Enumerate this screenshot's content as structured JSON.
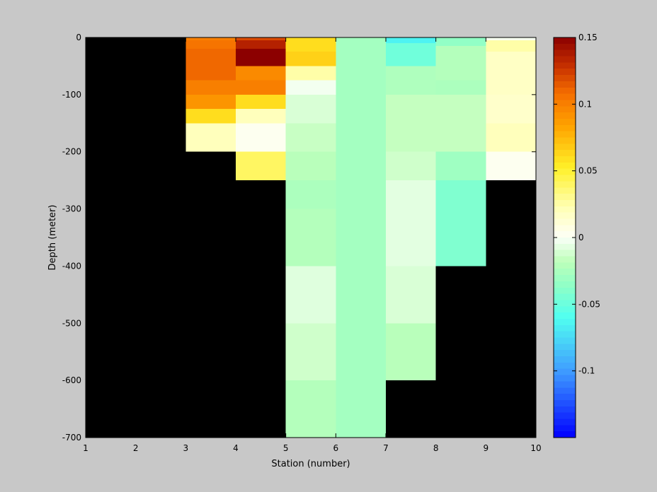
{
  "chart_data": {
    "type": "heatmap",
    "xlabel": "Station (number)",
    "ylabel": "Depth (meter)",
    "xlim": [
      1,
      10
    ],
    "ylim": [
      -700,
      0
    ],
    "xticks": [
      1,
      2,
      3,
      4,
      5,
      6,
      7,
      8,
      9,
      10
    ],
    "yticks": [
      0,
      -100,
      -200,
      -300,
      -400,
      -500,
      -600,
      -700
    ],
    "colorbar": {
      "clim": [
        -0.15,
        0.15
      ],
      "ticks": [
        0.15,
        0.1,
        0.05,
        0,
        -0.05,
        -0.1
      ],
      "colormap": "jet-white-centered"
    },
    "background_color": "#000000",
    "cells": [
      {
        "x0": 3,
        "x1": 4,
        "y0": 0,
        "y1": -5,
        "v": 0.1
      },
      {
        "x0": 3,
        "x1": 4,
        "y0": -5,
        "y1": -20,
        "v": 0.105
      },
      {
        "x0": 3,
        "x1": 4,
        "y0": -20,
        "y1": -75,
        "v": 0.11
      },
      {
        "x0": 3,
        "x1": 4,
        "y0": -75,
        "y1": -100,
        "v": 0.1
      },
      {
        "x0": 3,
        "x1": 4,
        "y0": -100,
        "y1": -125,
        "v": 0.09
      },
      {
        "x0": 3,
        "x1": 4,
        "y0": -125,
        "y1": -150,
        "v": 0.06
      },
      {
        "x0": 3,
        "x1": 4,
        "y0": -150,
        "y1": -200,
        "v": 0.02
      },
      {
        "x0": 4,
        "x1": 5,
        "y0": 0,
        "y1": -5,
        "v": 0.12
      },
      {
        "x0": 4,
        "x1": 5,
        "y0": -5,
        "y1": -20,
        "v": 0.135
      },
      {
        "x0": 4,
        "x1": 5,
        "y0": -20,
        "y1": -50,
        "v": 0.15
      },
      {
        "x0": 4,
        "x1": 5,
        "y0": -50,
        "y1": -75,
        "v": 0.095
      },
      {
        "x0": 4,
        "x1": 5,
        "y0": -75,
        "y1": -100,
        "v": 0.1
      },
      {
        "x0": 4,
        "x1": 5,
        "y0": -100,
        "y1": -125,
        "v": 0.06
      },
      {
        "x0": 4,
        "x1": 5,
        "y0": -125,
        "y1": -150,
        "v": 0.02
      },
      {
        "x0": 4,
        "x1": 5,
        "y0": -150,
        "y1": -200,
        "v": 0.002
      },
      {
        "x0": 4,
        "x1": 5,
        "y0": -200,
        "y1": -250,
        "v": 0.04
      },
      {
        "x0": 5,
        "x1": 6,
        "y0": 0,
        "y1": -25,
        "v": 0.06
      },
      {
        "x0": 5,
        "x1": 6,
        "y0": -25,
        "y1": -50,
        "v": 0.065
      },
      {
        "x0": 5,
        "x1": 6,
        "y0": -50,
        "y1": -75,
        "v": 0.025
      },
      {
        "x0": 5,
        "x1": 6,
        "y0": -75,
        "y1": -100,
        "v": -0.002
      },
      {
        "x0": 5,
        "x1": 6,
        "y0": -100,
        "y1": -150,
        "v": -0.01
      },
      {
        "x0": 5,
        "x1": 6,
        "y0": -150,
        "y1": -200,
        "v": -0.015
      },
      {
        "x0": 5,
        "x1": 6,
        "y0": -200,
        "y1": -250,
        "v": -0.02
      },
      {
        "x0": 5,
        "x1": 6,
        "y0": -250,
        "y1": -300,
        "v": -0.025
      },
      {
        "x0": 5,
        "x1": 6,
        "y0": -300,
        "y1": -400,
        "v": -0.022
      },
      {
        "x0": 5,
        "x1": 6,
        "y0": -400,
        "y1": -500,
        "v": -0.008
      },
      {
        "x0": 5,
        "x1": 6,
        "y0": -500,
        "y1": -600,
        "v": -0.013
      },
      {
        "x0": 5,
        "x1": 6,
        "y0": -600,
        "y1": -700,
        "v": -0.022
      },
      {
        "x0": 6,
        "x1": 7,
        "y0": 0,
        "y1": -700,
        "v": -0.028
      },
      {
        "x0": 7,
        "x1": 8,
        "y0": 0,
        "y1": -10,
        "v": -0.065
      },
      {
        "x0": 7,
        "x1": 8,
        "y0": -10,
        "y1": -50,
        "v": -0.048
      },
      {
        "x0": 7,
        "x1": 8,
        "y0": -50,
        "y1": -100,
        "v": -0.024
      },
      {
        "x0": 7,
        "x1": 8,
        "y0": -100,
        "y1": -200,
        "v": -0.016
      },
      {
        "x0": 7,
        "x1": 8,
        "y0": -200,
        "y1": -250,
        "v": -0.013
      },
      {
        "x0": 7,
        "x1": 8,
        "y0": -250,
        "y1": -400,
        "v": -0.007
      },
      {
        "x0": 7,
        "x1": 8,
        "y0": -400,
        "y1": -500,
        "v": -0.01
      },
      {
        "x0": 7,
        "x1": 8,
        "y0": -500,
        "y1": -600,
        "v": -0.02
      },
      {
        "x0": 8,
        "x1": 9,
        "y0": 0,
        "y1": -15,
        "v": -0.035
      },
      {
        "x0": 8,
        "x1": 9,
        "y0": -15,
        "y1": -75,
        "v": -0.022
      },
      {
        "x0": 8,
        "x1": 9,
        "y0": -75,
        "y1": -100,
        "v": -0.025
      },
      {
        "x0": 8,
        "x1": 9,
        "y0": -100,
        "y1": -200,
        "v": -0.016
      },
      {
        "x0": 8,
        "x1": 9,
        "y0": -200,
        "y1": -250,
        "v": -0.03
      },
      {
        "x0": 8,
        "x1": 9,
        "y0": -250,
        "y1": -400,
        "v": -0.042
      },
      {
        "x0": 9,
        "x1": 10,
        "y0": 0,
        "y1": -5,
        "v": 0.0
      },
      {
        "x0": 9,
        "x1": 10,
        "y0": -5,
        "y1": -25,
        "v": 0.025
      },
      {
        "x0": 9,
        "x1": 10,
        "y0": -25,
        "y1": -100,
        "v": 0.017
      },
      {
        "x0": 9,
        "x1": 10,
        "y0": -100,
        "y1": -150,
        "v": 0.015
      },
      {
        "x0": 9,
        "x1": 10,
        "y0": -150,
        "y1": -200,
        "v": 0.02
      },
      {
        "x0": 9,
        "x1": 10,
        "y0": -200,
        "y1": -250,
        "v": 0.002
      }
    ]
  }
}
